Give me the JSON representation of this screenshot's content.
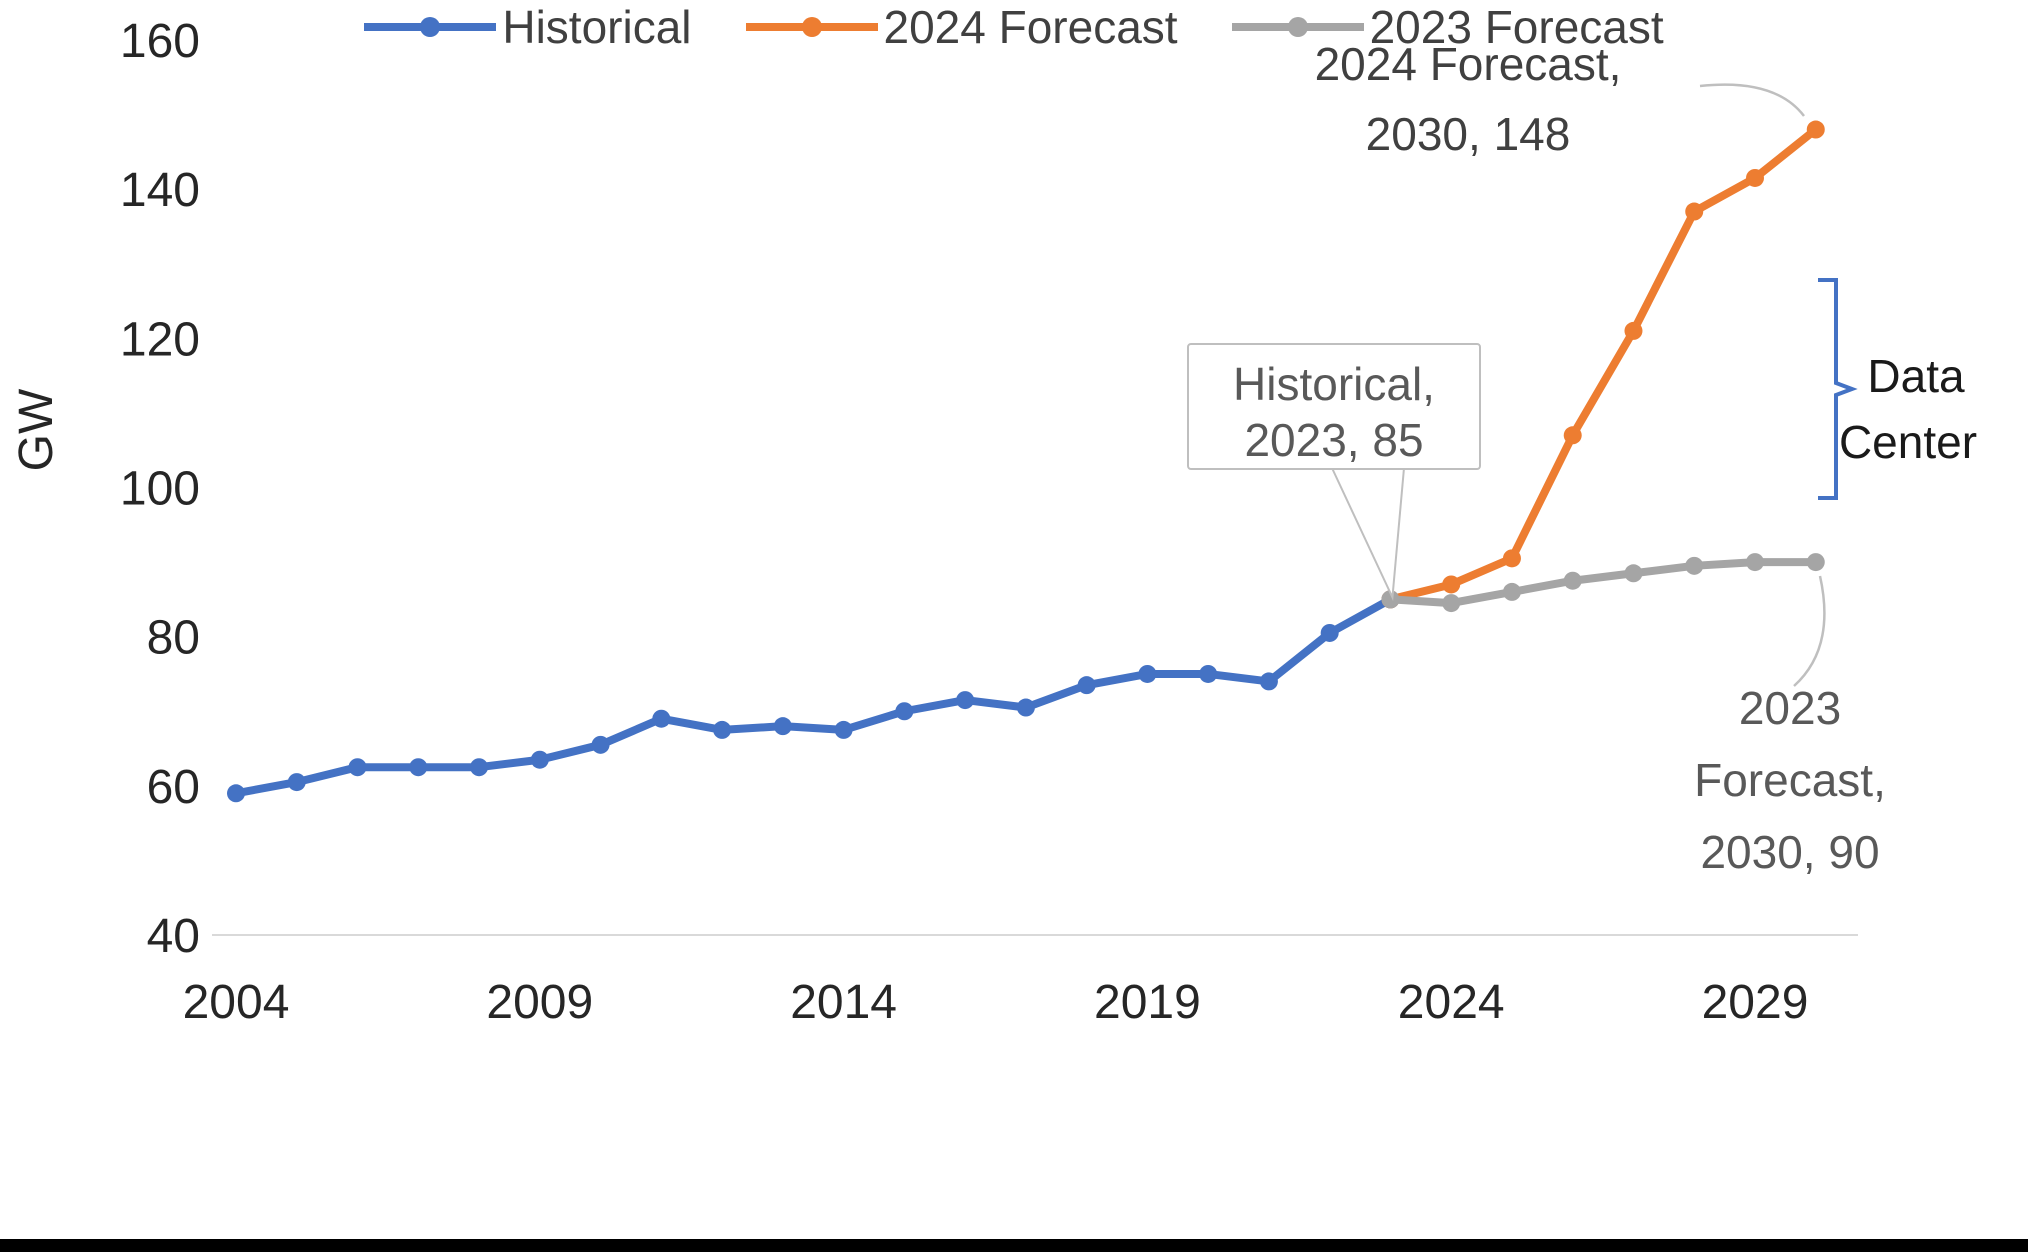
{
  "chart_data": {
    "type": "line",
    "title": "",
    "xlabel": "",
    "ylabel": "GW",
    "x_ticks": [
      2004,
      2009,
      2014,
      2019,
      2024,
      2029
    ],
    "y_ticks": [
      40,
      60,
      80,
      100,
      120,
      140,
      160
    ],
    "xlim": [
      2003.6,
      2031.2
    ],
    "ylim": [
      40,
      160
    ],
    "grid": false,
    "legend_position": "bottom",
    "axis_color": "#D9D9D9",
    "leader_color": "#BFBFBF",
    "series": [
      {
        "name": "Historical",
        "color": "#4472C4",
        "x": [
          2004,
          2005,
          2006,
          2007,
          2008,
          2009,
          2010,
          2011,
          2012,
          2013,
          2014,
          2015,
          2016,
          2017,
          2018,
          2019,
          2020,
          2021,
          2022,
          2023
        ],
        "values": [
          59,
          60.5,
          62.5,
          62.5,
          62.5,
          63.5,
          65.5,
          69,
          67.5,
          68,
          67.5,
          70,
          71.5,
          70.5,
          73.5,
          75,
          75,
          74,
          80.5,
          85
        ]
      },
      {
        "name": "2024 Forecast",
        "color": "#ED7D31",
        "x": [
          2023,
          2024,
          2025,
          2026,
          2027,
          2028,
          2029,
          2030
        ],
        "values": [
          85,
          87,
          90.5,
          107,
          121,
          137,
          141.5,
          148
        ]
      },
      {
        "name": "2023 Forecast",
        "color": "#A5A5A5",
        "x": [
          2023,
          2024,
          2025,
          2026,
          2027,
          2028,
          2029,
          2030
        ],
        "values": [
          85,
          84.5,
          86,
          87.5,
          88.5,
          89.5,
          90,
          90
        ]
      }
    ],
    "annotations": [
      {
        "id": "label-2024-forecast",
        "lines": [
          "2024 Forecast,",
          "2030,  148"
        ],
        "color": "#404040"
      },
      {
        "id": "callout-historical",
        "lines": [
          "Historical,",
          "2023, 85"
        ],
        "color": "#595959",
        "boxed": true,
        "target_x": 2023,
        "target_y": 85
      },
      {
        "id": "label-2023-forecast",
        "lines": [
          "2023",
          "Forecast,",
          "2030,  90"
        ],
        "color": "#595959"
      },
      {
        "id": "label-data-center",
        "lines": [
          "Data",
          "Center"
        ],
        "color": "#1a1a1a",
        "bracket_color": "#4472C4"
      }
    ]
  },
  "legend": {
    "items": [
      {
        "label": "Historical",
        "color": "#4472C4"
      },
      {
        "label": "2024 Forecast",
        "color": "#ED7D31"
      },
      {
        "label": "2023 Forecast",
        "color": "#A5A5A5"
      }
    ]
  }
}
